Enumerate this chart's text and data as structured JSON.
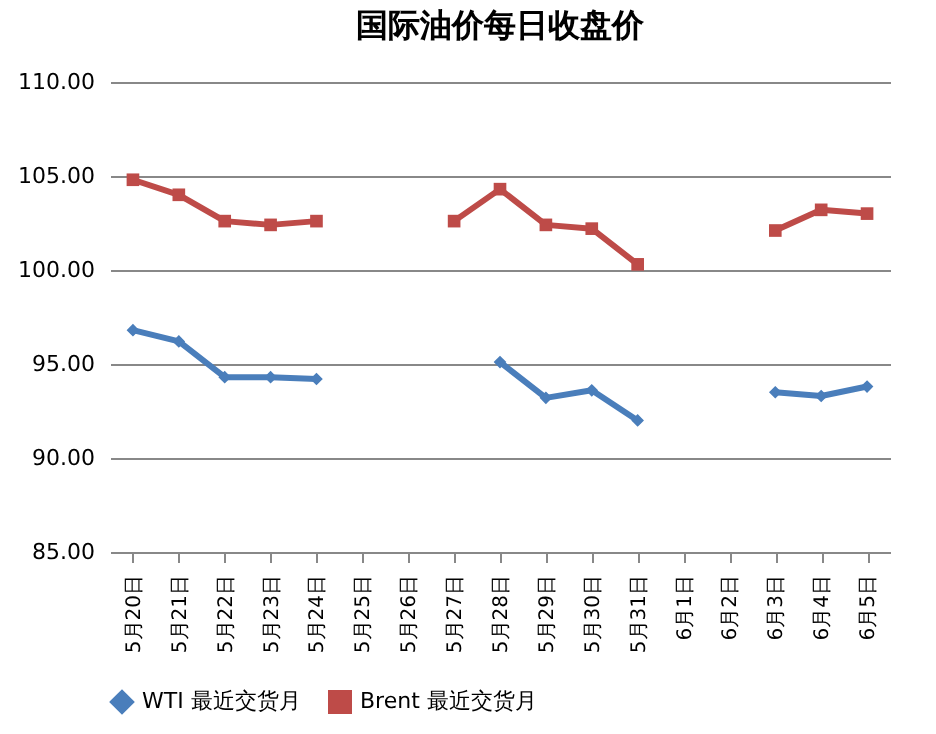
{
  "chart_data": {
    "type": "line",
    "title": "国际油价每日收盘价",
    "categories": [
      "5月20日",
      "5月21日",
      "5月22日",
      "5月23日",
      "5月24日",
      "5月25日",
      "5月26日",
      "5月27日",
      "5月28日",
      "5月29日",
      "5月30日",
      "5月31日",
      "6月1日",
      "6月2日",
      "6月3日",
      "6月4日",
      "6月5日"
    ],
    "series": [
      {
        "name": "WTI 最近交货月",
        "color": "#4a7ebb",
        "marker": "diamond",
        "values": [
          96.8,
          96.2,
          94.3,
          94.3,
          94.2,
          null,
          null,
          null,
          95.1,
          93.2,
          93.6,
          92.0,
          null,
          null,
          93.5,
          93.3,
          93.8
        ]
      },
      {
        "name": "Brent 最近交货月",
        "color": "#be4b48",
        "marker": "square",
        "values": [
          104.8,
          104.0,
          102.6,
          102.4,
          102.6,
          null,
          null,
          102.6,
          104.3,
          102.4,
          102.2,
          100.3,
          null,
          null,
          102.1,
          103.2,
          103.0
        ]
      }
    ],
    "ylim": [
      85,
      110
    ],
    "yticks": [
      {
        "value": 85,
        "label": "85.00"
      },
      {
        "value": 90,
        "label": "90.00"
      },
      {
        "value": 95,
        "label": "95.00"
      },
      {
        "value": 100,
        "label": "100.00"
      },
      {
        "value": 105,
        "label": "105.00"
      },
      {
        "value": 110,
        "label": "110.00"
      }
    ],
    "grid": "y",
    "legend": "bottom",
    "line_style": "solid"
  }
}
